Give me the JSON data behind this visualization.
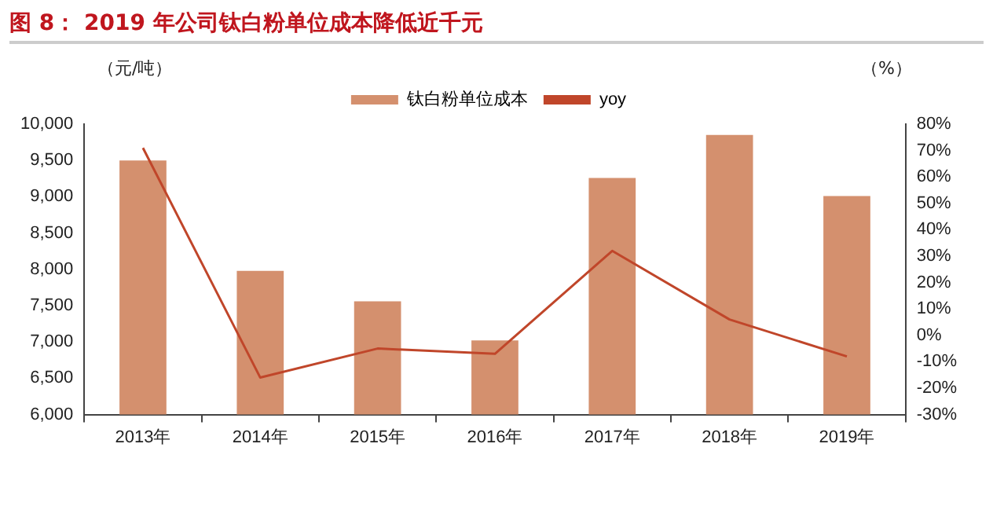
{
  "chart_data": {
    "type": "bar",
    "title": "图 8：  2019 年公司钛白粉单位成本降低近千元",
    "ylabel": "（元/吨）",
    "y2label": "（%）",
    "categories": [
      "2013年",
      "2014年",
      "2015年",
      "2016年",
      "2017年",
      "2018年",
      "2019年"
    ],
    "series": [
      {
        "name": "钛白粉单位成本",
        "color": "#d4906e",
        "values": [
          9500,
          7980,
          7560,
          7020,
          9260,
          9850,
          9010
        ]
      },
      {
        "name": "yoy",
        "type": "line",
        "axis": "y2",
        "color": "#c0462a",
        "values": [
          71,
          -16,
          -5,
          -7,
          32,
          6,
          -8
        ]
      }
    ],
    "ylim": [
      6000,
      10000
    ],
    "yticks": [
      {
        "value": 6000,
        "label": "6,000"
      },
      {
        "value": 6500,
        "label": "6,500"
      },
      {
        "value": 7000,
        "label": "7,000"
      },
      {
        "value": 7500,
        "label": "7,500"
      },
      {
        "value": 8000,
        "label": "8,000"
      },
      {
        "value": 8500,
        "label": "8,500"
      },
      {
        "value": 9000,
        "label": "9,000"
      },
      {
        "value": 9500,
        "label": "9,500"
      },
      {
        "value": 10000,
        "label": "10,000"
      }
    ],
    "y2lim": [
      -30,
      80
    ],
    "y2ticks": [
      {
        "value": -30,
        "label": "-30%"
      },
      {
        "value": -20,
        "label": "-20%"
      },
      {
        "value": -10,
        "label": "-10%"
      },
      {
        "value": 0,
        "label": "0%"
      },
      {
        "value": 10,
        "label": "10%"
      },
      {
        "value": 20,
        "label": "20%"
      },
      {
        "value": 30,
        "label": "30%"
      },
      {
        "value": 40,
        "label": "40%"
      },
      {
        "value": 50,
        "label": "50%"
      },
      {
        "value": 60,
        "label": "60%"
      },
      {
        "value": 70,
        "label": "70%"
      },
      {
        "value": 80,
        "label": "80%"
      }
    ],
    "legend": "top",
    "grid": false,
    "marker": "none"
  }
}
